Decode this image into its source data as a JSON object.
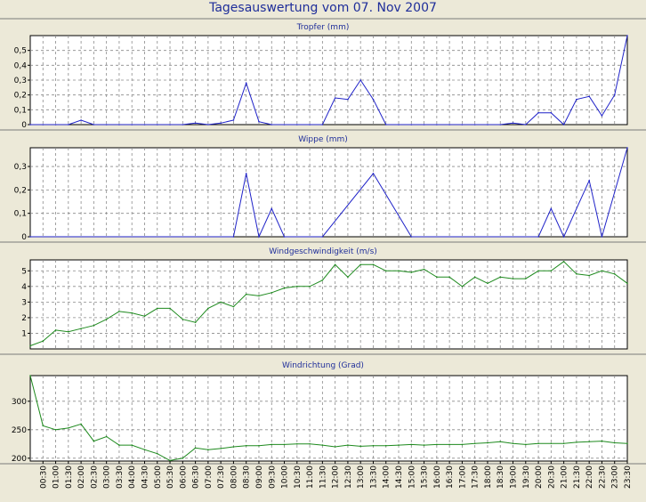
{
  "page": {
    "title": "Tagesauswertung vom 07. Nov 2007"
  },
  "colors": {
    "background": "#ece9d8",
    "plot_background": "#ffffff",
    "grid": "#8a8a8a",
    "title": "#1f2e9a",
    "series_blue": "#1f22c8",
    "series_green": "#1e8a1e"
  },
  "x_tick_labels": [
    "00:30",
    "01:00",
    "01:30",
    "02:00",
    "02:30",
    "03:00",
    "03:30",
    "04:00",
    "04:30",
    "05:00",
    "05:30",
    "06:00",
    "06:30",
    "07:00",
    "07:30",
    "08:00",
    "08:30",
    "09:00",
    "09:30",
    "10:00",
    "10:30",
    "11:00",
    "11:30",
    "12:00",
    "12:30",
    "13:00",
    "13:30",
    "14:00",
    "14:30",
    "15:00",
    "15:30",
    "16:00",
    "16:30",
    "17:00",
    "17:30",
    "18:00",
    "18:30",
    "19:00",
    "19:30",
    "20:00",
    "20:30",
    "21:00",
    "21:30",
    "22:00",
    "22:30",
    "23:00",
    "23:30"
  ],
  "chart_data": [
    {
      "type": "line",
      "title": "Tropfer (mm)",
      "x": [
        "00:00",
        "00:30",
        "01:00",
        "01:30",
        "02:00",
        "02:30",
        "03:00",
        "03:30",
        "04:00",
        "04:30",
        "05:00",
        "05:30",
        "06:00",
        "06:30",
        "07:00",
        "07:30",
        "08:00",
        "08:30",
        "09:00",
        "09:30",
        "10:00",
        "10:30",
        "11:00",
        "11:30",
        "12:00",
        "12:30",
        "13:00",
        "13:30",
        "14:00",
        "14:30",
        "15:00",
        "15:30",
        "16:00",
        "16:30",
        "17:00",
        "17:30",
        "18:00",
        "18:30",
        "19:00",
        "19:30",
        "20:00",
        "20:30",
        "21:00",
        "21:30",
        "22:00",
        "22:30",
        "23:00",
        "23:30"
      ],
      "values": [
        0,
        0,
        0,
        0,
        0.03,
        0,
        0,
        0,
        0,
        0,
        0,
        0,
        0,
        0.01,
        0,
        0.01,
        0.03,
        0.28,
        0.02,
        0,
        0,
        0,
        0,
        0,
        0.18,
        0.17,
        0.3,
        0.17,
        0,
        0,
        0,
        0,
        0,
        0,
        0,
        0,
        0,
        0,
        0.01,
        0,
        0.08,
        0.08,
        0,
        0.17,
        0.19,
        0.06,
        0.2,
        0.6
      ],
      "ylim": [
        0,
        0.6
      ],
      "y_ticks": [
        "0",
        "0,1",
        "0,2",
        "0,3",
        "0,4",
        "0,5"
      ],
      "y_tick_values": [
        0,
        0.1,
        0.2,
        0.3,
        0.4,
        0.5
      ],
      "color": "#1f22c8",
      "grid": true
    },
    {
      "type": "line",
      "title": "Wippe (mm)",
      "x": [
        "00:00",
        "08:00",
        "08:30",
        "09:00",
        "09:30",
        "10:00",
        "11:30",
        "13:30",
        "15:00",
        "20:00",
        "20:30",
        "21:00",
        "22:00",
        "22:30",
        "23:30"
      ],
      "values": [
        0,
        0,
        0.27,
        0,
        0.12,
        0,
        0,
        0.27,
        0,
        0,
        0.12,
        0,
        0.24,
        0,
        0.38
      ],
      "ylim": [
        0,
        0.38
      ],
      "y_ticks": [
        "0",
        "0,1",
        "0,2",
        "0,3"
      ],
      "y_tick_values": [
        0,
        0.1,
        0.2,
        0.3
      ],
      "color": "#1f22c8",
      "grid": true
    },
    {
      "type": "line",
      "title": "Windgeschwindigkeit (m/s)",
      "x": [
        "00:00",
        "00:30",
        "01:00",
        "01:30",
        "02:00",
        "02:30",
        "03:00",
        "03:30",
        "04:00",
        "04:30",
        "05:00",
        "05:30",
        "06:00",
        "06:30",
        "07:00",
        "07:30",
        "08:00",
        "08:30",
        "09:00",
        "09:30",
        "10:00",
        "10:30",
        "11:00",
        "11:30",
        "12:00",
        "12:30",
        "13:00",
        "13:30",
        "14:00",
        "14:30",
        "15:00",
        "15:30",
        "16:00",
        "16:30",
        "17:00",
        "17:30",
        "18:00",
        "18:30",
        "19:00",
        "19:30",
        "20:00",
        "20:30",
        "21:00",
        "21:30",
        "22:00",
        "22:30",
        "23:00",
        "23:30"
      ],
      "values": [
        0.2,
        0.5,
        1.2,
        1.1,
        1.3,
        1.5,
        1.9,
        2.4,
        2.3,
        2.1,
        2.6,
        2.6,
        1.9,
        1.7,
        2.6,
        3.0,
        2.7,
        3.5,
        3.4,
        3.6,
        3.9,
        4.0,
        4.0,
        4.4,
        5.4,
        4.6,
        5.4,
        5.4,
        5.0,
        5.0,
        4.9,
        5.1,
        4.6,
        4.6,
        4.0,
        4.6,
        4.2,
        4.6,
        4.5,
        4.5,
        5.0,
        5.0,
        5.6,
        4.8,
        4.7,
        5.0,
        4.8,
        4.2
      ],
      "ylim": [
        0,
        5.7
      ],
      "y_ticks": [
        "1",
        "2",
        "3",
        "4",
        "5"
      ],
      "y_tick_values": [
        1,
        2,
        3,
        4,
        5
      ],
      "color": "#1e8a1e",
      "grid": true
    },
    {
      "type": "line",
      "title": "Windrichtung (Grad)",
      "x": [
        "00:00",
        "00:30",
        "01:00",
        "01:30",
        "02:00",
        "02:30",
        "03:00",
        "03:30",
        "04:00",
        "04:30",
        "05:00",
        "05:30",
        "06:00",
        "06:30",
        "07:00",
        "07:30",
        "08:00",
        "08:30",
        "09:00",
        "09:30",
        "10:00",
        "10:30",
        "11:00",
        "11:30",
        "12:00",
        "12:30",
        "13:00",
        "13:30",
        "14:00",
        "14:30",
        "15:00",
        "15:30",
        "16:00",
        "16:30",
        "17:00",
        "17:30",
        "18:00",
        "18:30",
        "19:00",
        "19:30",
        "20:00",
        "20:30",
        "21:00",
        "21:30",
        "22:00",
        "22:30",
        "23:00",
        "23:30"
      ],
      "values": [
        345,
        257,
        250,
        253,
        260,
        230,
        238,
        223,
        223,
        215,
        208,
        196,
        200,
        218,
        215,
        217,
        220,
        222,
        222,
        224,
        224,
        225,
        225,
        223,
        220,
        223,
        221,
        222,
        222,
        223,
        224,
        223,
        224,
        224,
        224,
        226,
        227,
        229,
        226,
        224,
        226,
        226,
        226,
        228,
        229,
        230,
        227,
        226
      ],
      "ylim": [
        195,
        345
      ],
      "y_ticks": [
        "200",
        "250",
        "300"
      ],
      "y_tick_values": [
        200,
        250,
        300
      ],
      "color": "#1e8a1e",
      "grid": true
    }
  ]
}
